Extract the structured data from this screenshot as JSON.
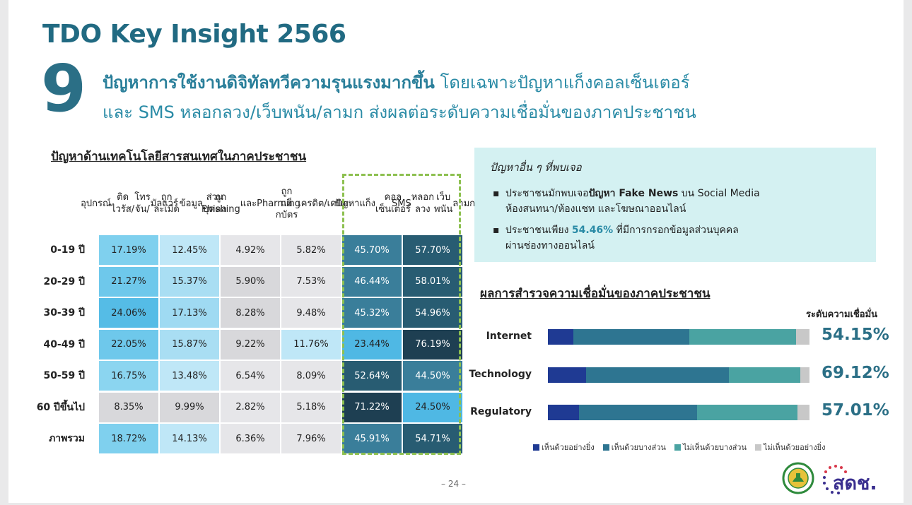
{
  "title": "TDO Key Insight 2566",
  "insight_number": "9",
  "headline": {
    "bold_part": "ปัญหาการใช้งานดิจิทัลทวีความรุนแรงมากขึ้น",
    "rest_line1": " โดยเฉพาะปัญหาแก็งคอลเซ็นเตอร์",
    "line2": "และ SMS หลอกลวง/เว็บพนัน/ลามก ส่งผลต่อระดับความเชื่อมั่นของภาคประชาชน"
  },
  "table": {
    "title": "ปัญหาด้านเทคโนโลยีสารสนเทศในภาคประชาชน",
    "columns": [
      "อุปกรณ์\nติดไวรัส/\nโทรจัน/\nมัลแวร์",
      "ถูกละเมิด\nข้อมูล\nส่วนบุคคล",
      "ถูก Phishing\nและ\nPharming",
      "ถูกแฮ็กบัตร\nเครดิต/\nเดบิต",
      "ปัญหา\nแก็ง\nคอลเซ็นเตอร์",
      "SMS\nหลอกลวง\nเว็บพนัน\nลามก"
    ],
    "rows": [
      {
        "label": "0-19 ปี",
        "values": [
          "17.19%",
          "12.45%",
          "4.92%",
          "5.82%",
          "45.70%",
          "57.70%"
        ],
        "colors": [
          "#7fd0ee",
          "#bfe7f7",
          "#e6e6e9",
          "#e6e6e9",
          "#3a7e9a",
          "#285c72"
        ]
      },
      {
        "label": "20-29 ปี",
        "values": [
          "21.27%",
          "15.37%",
          "5.90%",
          "7.53%",
          "46.44%",
          "58.01%"
        ],
        "colors": [
          "#6ec8eb",
          "#a9def3",
          "#d8d8db",
          "#e6e6e9",
          "#3a7e9a",
          "#285c72"
        ]
      },
      {
        "label": "30-39 ปี",
        "values": [
          "24.06%",
          "17.13%",
          "8.28%",
          "9.48%",
          "45.32%",
          "54.96%"
        ],
        "colors": [
          "#55bce6",
          "#9fdaf2",
          "#d8d8db",
          "#e6e6e9",
          "#3a7e9a",
          "#285c72"
        ]
      },
      {
        "label": "40-49 ปี",
        "values": [
          "22.05%",
          "15.87%",
          "9.22%",
          "11.76%",
          "23.44%",
          "76.19%"
        ],
        "colors": [
          "#6ec8eb",
          "#a9def3",
          "#d8d8db",
          "#bfe7f7",
          "#4fb8e4",
          "#1e3f52"
        ]
      },
      {
        "label": "50-59 ปี",
        "values": [
          "16.75%",
          "13.48%",
          "6.54%",
          "8.09%",
          "52.64%",
          "44.50%"
        ],
        "colors": [
          "#8bd5f0",
          "#bfe7f7",
          "#e6e6e9",
          "#e6e6e9",
          "#285c72",
          "#3a7e9a"
        ]
      },
      {
        "label": "60 ปีขึ้นไป",
        "values": [
          "8.35%",
          "9.99%",
          "2.82%",
          "5.18%",
          "71.22%",
          "24.50%"
        ],
        "colors": [
          "#d8d8db",
          "#d8d8db",
          "#e6e6e9",
          "#e6e6e9",
          "#1e3f52",
          "#4fb8e4"
        ]
      },
      {
        "label": "ภาพรวม",
        "values": [
          "18.72%",
          "14.13%",
          "6.36%",
          "7.96%",
          "45.91%",
          "54.71%"
        ],
        "colors": [
          "#7fd0ee",
          "#bfe7f7",
          "#e6e6e9",
          "#e6e6e9",
          "#3a7e9a",
          "#285c72"
        ]
      }
    ]
  },
  "info_box": {
    "title": "ปัญหาอื่น ๆ ที่พบเจอ",
    "bullet1": {
      "prefix": "ประชาชนมักพบเจอ",
      "bold": "ปัญหา Fake News",
      "suffix": " บน Social Media",
      "line2": "ห้องสนทนา/ห้องแชท และโฆษณาออนไลน์"
    },
    "bullet2": {
      "prefix": "ประชาชนเพียง ",
      "bold": "54.46%",
      "suffix": " ที่มีการกรอกข้อมูลส่วนบุคคล",
      "line2": "ผ่านช่องทางออนไลน์"
    },
    "bullet_glyph": "▪"
  },
  "confidence": {
    "title": "ผลการสำรวจความเชื่อมั่นของภาคประชาชน",
    "column_header": "ระดับความเชื่อมั่น",
    "legend": [
      "เห็นด้วยอย่างยิ่ง",
      "เห็นด้วยบางส่วน",
      "ไม่เห็นด้วยบางส่วน",
      "ไม่เห็นด้วยอย่างยิ่ง"
    ],
    "legend_colors": [
      "#1f3a93",
      "#2e7591",
      "#4aa3a2",
      "#c8c8c8"
    ],
    "rows": [
      {
        "label": "Internet",
        "level": "54.15%",
        "segments": [
          9.7,
          44.4,
          40.8,
          5.1
        ]
      },
      {
        "label": "Technology",
        "level": "69.12%",
        "segments": [
          14.5,
          54.6,
          27.3,
          3.6
        ]
      },
      {
        "label": "Regulatory",
        "level": "57.01%",
        "segments": [
          11.9,
          45.1,
          38.3,
          4.7
        ]
      }
    ]
  },
  "page_number": "– 24 –",
  "logo_text": "สดช."
}
